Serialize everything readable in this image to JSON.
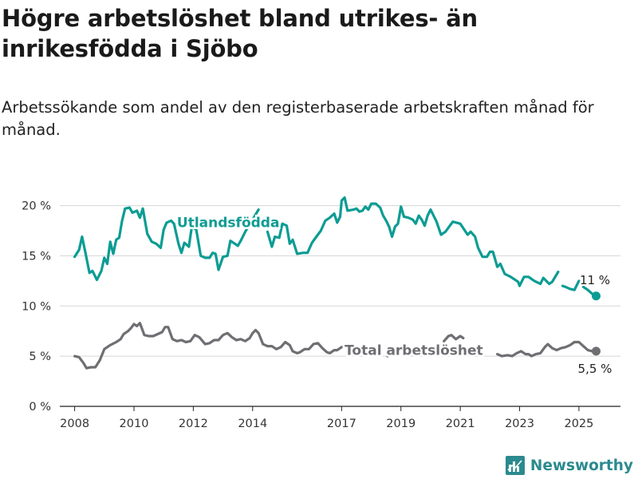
{
  "title": "Högre arbetslöshet bland utrikes- än inrikesfödda i Sjöbo",
  "subtitle": "Arbetssökande som andel av den registerbaserade arbetskraften månad för månad.",
  "brand": {
    "name": "Newsworthy",
    "color": "#2b8a8f"
  },
  "chart_data": {
    "type": "line",
    "x_unit": "year (decimal, monthly data)",
    "xlim": [
      2007.5,
      2026.4
    ],
    "ylim": [
      0,
      21
    ],
    "x_ticks": [
      {
        "value": 2008,
        "label": "2008"
      },
      {
        "value": 2010,
        "label": "2010"
      },
      {
        "value": 2012,
        "label": "2012"
      },
      {
        "value": 2014,
        "label": "2014"
      },
      {
        "value": 2017,
        "label": "2017"
      },
      {
        "value": 2019,
        "label": "2019"
      },
      {
        "value": 2021,
        "label": "2021"
      },
      {
        "value": 2023,
        "label": "2023"
      },
      {
        "value": 2025,
        "label": "2025"
      }
    ],
    "y_ticks": [
      {
        "value": 0,
        "label": "0 %"
      },
      {
        "value": 5,
        "label": "5 %"
      },
      {
        "value": 10,
        "label": "10 %"
      },
      {
        "value": 15,
        "label": "15 %"
      },
      {
        "value": 20,
        "label": "20 %"
      }
    ],
    "grid": "horizontal",
    "series": [
      {
        "name": "Utlandsfödda",
        "color": "#0c9c93",
        "end_label": "11 %",
        "points": [
          [
            2008.0,
            14.9
          ],
          [
            2008.15,
            15.6
          ],
          [
            2008.25,
            16.9
          ],
          [
            2008.35,
            15.5
          ],
          [
            2008.5,
            13.3
          ],
          [
            2008.6,
            13.5
          ],
          [
            2008.75,
            12.6
          ],
          [
            2008.9,
            13.5
          ],
          [
            2009.0,
            14.8
          ],
          [
            2009.1,
            14.2
          ],
          [
            2009.2,
            16.4
          ],
          [
            2009.3,
            15.2
          ],
          [
            2009.4,
            16.6
          ],
          [
            2009.5,
            16.8
          ],
          [
            2009.6,
            18.5
          ],
          [
            2009.7,
            19.7
          ],
          [
            2009.85,
            19.8
          ],
          [
            2009.95,
            19.3
          ],
          [
            2010.1,
            19.5
          ],
          [
            2010.2,
            18.8
          ],
          [
            2010.3,
            19.7
          ],
          [
            2010.45,
            17.2
          ],
          [
            2010.6,
            16.4
          ],
          [
            2010.75,
            16.2
          ],
          [
            2010.9,
            15.8
          ],
          [
            2011.0,
            17.6
          ],
          [
            2011.1,
            18.3
          ],
          [
            2011.25,
            18.5
          ],
          [
            2011.35,
            18.2
          ],
          [
            2011.5,
            16.2
          ],
          [
            2011.6,
            15.3
          ],
          [
            2011.7,
            16.3
          ],
          [
            2011.85,
            15.9
          ],
          [
            2011.95,
            17.9
          ],
          [
            2012.1,
            17.6
          ],
          [
            2012.25,
            15.0
          ],
          [
            2012.4,
            14.8
          ],
          [
            2012.55,
            14.8
          ],
          [
            2012.65,
            15.3
          ],
          [
            2012.75,
            15.2
          ],
          [
            2012.85,
            13.6
          ],
          [
            2013.0,
            14.9
          ],
          [
            2013.15,
            15.0
          ],
          [
            2013.25,
            16.5
          ],
          [
            2013.4,
            16.2
          ],
          [
            2013.5,
            16.0
          ],
          [
            2013.6,
            16.5
          ],
          [
            2013.75,
            17.4
          ],
          [
            2014.2,
            19.6
          ]
        ],
        "segments": [
          [
            [
              2014.5,
              17.4
            ],
            [
              2014.65,
              15.9
            ],
            [
              2014.75,
              16.9
            ],
            [
              2014.9,
              16.8
            ],
            [
              2015.0,
              18.2
            ],
            [
              2015.15,
              18.0
            ],
            [
              2015.25,
              16.2
            ],
            [
              2015.35,
              16.6
            ],
            [
              2015.5,
              15.2
            ],
            [
              2015.7,
              15.3
            ],
            [
              2015.85,
              15.3
            ],
            [
              2016.0,
              16.3
            ],
            [
              2016.15,
              16.9
            ],
            [
              2016.3,
              17.5
            ],
            [
              2016.45,
              18.5
            ],
            [
              2016.6,
              18.8
            ],
            [
              2016.75,
              19.2
            ],
            [
              2016.85,
              18.3
            ],
            [
              2016.95,
              18.9
            ],
            [
              2017.0,
              20.5
            ],
            [
              2017.1,
              20.8
            ],
            [
              2017.2,
              19.5
            ],
            [
              2017.4,
              19.6
            ],
            [
              2017.5,
              19.7
            ],
            [
              2017.6,
              19.4
            ],
            [
              2017.7,
              19.5
            ],
            [
              2017.8,
              19.9
            ],
            [
              2017.9,
              19.6
            ],
            [
              2018.0,
              20.2
            ],
            [
              2018.15,
              20.2
            ],
            [
              2018.3,
              19.8
            ],
            [
              2018.4,
              19.0
            ],
            [
              2018.5,
              18.5
            ],
            [
              2018.6,
              17.9
            ],
            [
              2018.7,
              16.9
            ],
            [
              2018.8,
              17.9
            ],
            [
              2018.9,
              18.2
            ],
            [
              2019.0,
              19.9
            ],
            [
              2019.1,
              18.9
            ],
            [
              2019.25,
              18.8
            ],
            [
              2019.4,
              18.6
            ],
            [
              2019.5,
              18.2
            ],
            [
              2019.6,
              19.0
            ],
            [
              2019.7,
              18.6
            ],
            [
              2019.8,
              18.0
            ],
            [
              2019.9,
              19.0
            ],
            [
              2020.0,
              19.6
            ],
            [
              2020.2,
              18.4
            ],
            [
              2020.35,
              17.1
            ],
            [
              2020.5,
              17.4
            ],
            [
              2020.6,
              17.8
            ],
            [
              2020.75,
              18.4
            ],
            [
              2021.0,
              18.2
            ],
            [
              2021.25,
              17.1
            ],
            [
              2021.35,
              17.4
            ],
            [
              2021.5,
              16.9
            ],
            [
              2021.6,
              15.8
            ],
            [
              2021.75,
              14.9
            ],
            [
              2021.9,
              14.9
            ],
            [
              2022.0,
              15.4
            ],
            [
              2022.1,
              15.4
            ],
            [
              2022.25,
              13.9
            ],
            [
              2022.35,
              14.2
            ],
            [
              2022.5,
              13.2
            ],
            [
              2022.7,
              12.9
            ],
            [
              2022.85,
              12.6
            ],
            [
              2022.95,
              12.4
            ],
            [
              2023.0,
              12.0
            ],
            [
              2023.15,
              12.9
            ],
            [
              2023.3,
              12.9
            ],
            [
              2023.5,
              12.5
            ],
            [
              2023.7,
              12.2
            ],
            [
              2023.8,
              12.8
            ],
            [
              2024.0,
              12.2
            ],
            [
              2024.1,
              12.4
            ],
            [
              2024.3,
              13.4
            ]
          ],
          [
            [
              2024.45,
              12.0
            ],
            [
              2024.55,
              11.9
            ],
            [
              2024.7,
              11.7
            ],
            [
              2024.85,
              11.6
            ],
            [
              2025.0,
              12.5
            ]
          ],
          [
            [
              2025.15,
              11.9
            ],
            [
              2025.3,
              11.6
            ],
            [
              2025.45,
              11.2
            ],
            [
              2025.58,
              11.0
            ]
          ]
        ]
      },
      {
        "name": "Total arbetslöshet",
        "color": "#6e6e73",
        "end_label": "5,5 %",
        "segments": [
          [
            [
              2008.0,
              5.0
            ],
            [
              2008.15,
              4.9
            ],
            [
              2008.3,
              4.3
            ],
            [
              2008.4,
              3.8
            ],
            [
              2008.55,
              3.9
            ],
            [
              2008.7,
              3.9
            ],
            [
              2008.85,
              4.6
            ],
            [
              2009.0,
              5.7
            ],
            [
              2009.2,
              6.1
            ],
            [
              2009.4,
              6.4
            ],
            [
              2009.55,
              6.7
            ],
            [
              2009.65,
              7.2
            ],
            [
              2009.8,
              7.5
            ],
            [
              2009.9,
              7.8
            ],
            [
              2010.0,
              8.2
            ],
            [
              2010.1,
              8.0
            ],
            [
              2010.2,
              8.3
            ],
            [
              2010.35,
              7.1
            ],
            [
              2010.5,
              7.0
            ],
            [
              2010.65,
              7.0
            ],
            [
              2010.8,
              7.2
            ],
            [
              2010.95,
              7.4
            ],
            [
              2011.05,
              7.9
            ],
            [
              2011.15,
              7.9
            ],
            [
              2011.3,
              6.7
            ],
            [
              2011.45,
              6.5
            ],
            [
              2011.6,
              6.6
            ],
            [
              2011.75,
              6.4
            ],
            [
              2011.9,
              6.5
            ],
            [
              2012.05,
              7.1
            ],
            [
              2012.2,
              6.9
            ],
            [
              2012.4,
              6.2
            ],
            [
              2012.55,
              6.3
            ],
            [
              2012.7,
              6.6
            ],
            [
              2012.85,
              6.6
            ],
            [
              2013.0,
              7.1
            ],
            [
              2013.15,
              7.3
            ],
            [
              2013.3,
              6.9
            ],
            [
              2013.45,
              6.6
            ],
            [
              2013.6,
              6.7
            ],
            [
              2013.75,
              6.5
            ],
            [
              2013.9,
              6.8
            ],
            [
              2014.0,
              7.3
            ],
            [
              2014.1,
              7.6
            ],
            [
              2014.2,
              7.3
            ],
            [
              2014.35,
              6.2
            ],
            [
              2014.5,
              6.0
            ],
            [
              2014.65,
              6.0
            ],
            [
              2014.8,
              5.7
            ],
            [
              2014.95,
              5.9
            ],
            [
              2015.1,
              6.4
            ],
            [
              2015.25,
              6.1
            ],
            [
              2015.35,
              5.5
            ],
            [
              2015.5,
              5.3
            ],
            [
              2015.6,
              5.4
            ],
            [
              2015.75,
              5.7
            ],
            [
              2015.9,
              5.7
            ],
            [
              2016.05,
              6.2
            ],
            [
              2016.2,
              6.3
            ],
            [
              2016.35,
              5.8
            ],
            [
              2016.5,
              5.4
            ],
            [
              2016.6,
              5.3
            ],
            [
              2016.75,
              5.6
            ],
            [
              2016.85,
              5.6
            ],
            [
              2017.0,
              5.9
            ]
          ],
          [
            [
              2018.55,
              5.0
            ],
            [
              2018.6,
              5.1
            ]
          ],
          [
            [
              2020.45,
              6.5
            ],
            [
              2020.6,
              7.0
            ],
            [
              2020.7,
              7.1
            ],
            [
              2020.85,
              6.7
            ],
            [
              2021.0,
              7.0
            ],
            [
              2021.1,
              6.8
            ]
          ],
          [
            [
              2022.25,
              5.2
            ],
            [
              2022.4,
              5.0
            ],
            [
              2022.6,
              5.1
            ],
            [
              2022.75,
              5.0
            ],
            [
              2022.9,
              5.3
            ],
            [
              2023.05,
              5.5
            ],
            [
              2023.2,
              5.2
            ],
            [
              2023.3,
              5.2
            ],
            [
              2023.4,
              5.0
            ],
            [
              2023.55,
              5.2
            ],
            [
              2023.7,
              5.3
            ],
            [
              2023.85,
              5.9
            ],
            [
              2023.95,
              6.2
            ],
            [
              2024.1,
              5.8
            ],
            [
              2024.25,
              5.6
            ],
            [
              2024.4,
              5.8
            ],
            [
              2024.55,
              5.9
            ],
            [
              2024.7,
              6.1
            ],
            [
              2024.85,
              6.4
            ],
            [
              2025.0,
              6.4
            ],
            [
              2025.15,
              6.0
            ],
            [
              2025.3,
              5.6
            ],
            [
              2025.45,
              5.5
            ],
            [
              2025.58,
              5.5
            ]
          ]
        ]
      }
    ]
  }
}
